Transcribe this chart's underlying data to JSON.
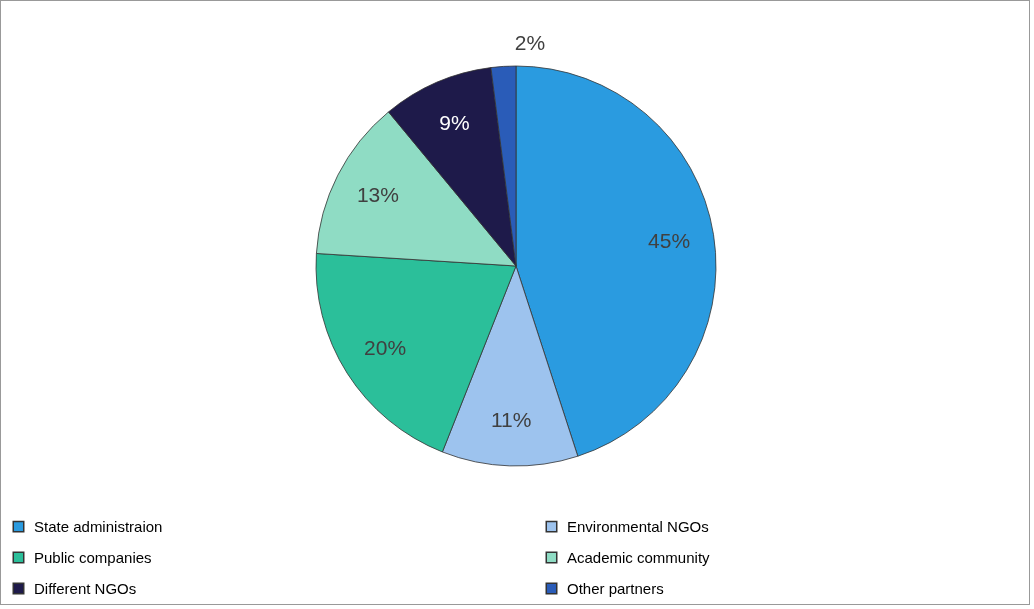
{
  "chart_data": {
    "type": "pie",
    "categories": [
      "State administraion",
      "Environmental NGOs",
      "Public companies",
      "Academic community",
      "Different NGOs",
      "Other partners"
    ],
    "values": [
      45,
      11,
      20,
      13,
      9,
      2
    ],
    "colors": [
      "#2a9be0",
      "#9dc3ee",
      "#2bbf9a",
      "#8fdcc4",
      "#1e1a4a",
      "#2a5cb8"
    ],
    "value_labels": [
      "45%",
      "11%",
      "20%",
      "13%",
      "9%",
      "2%"
    ],
    "legend": "bottom"
  }
}
